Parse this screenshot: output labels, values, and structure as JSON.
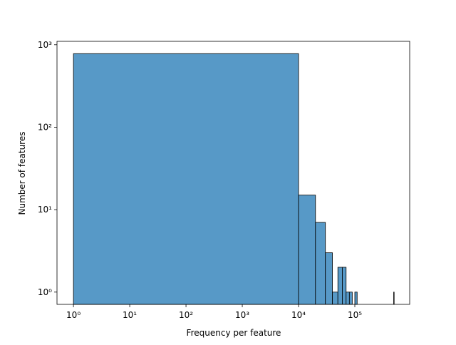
{
  "chart_data": {
    "type": "histogram",
    "log_x": true,
    "log_y": true,
    "color": "#5799c7",
    "edgecolor": "#000000",
    "x_label": "Frequency per feature",
    "y_label": "Number of features",
    "bins": [
      1,
      10000,
      20000,
      30000,
      40000,
      50000,
      60000,
      70000,
      80000,
      90000,
      100000,
      110000,
      120000,
      130000,
      140000,
      150000,
      160000,
      170000,
      180000,
      190000,
      200000,
      210000,
      220000,
      230000,
      240000,
      250000,
      260000,
      270000,
      280000,
      290000,
      300000,
      310000,
      320000,
      330000,
      340000,
      350000,
      360000,
      370000,
      380000,
      390000,
      400000,
      410000,
      420000,
      430000,
      440000,
      450000,
      460000,
      470000,
      480000,
      490000,
      500000
    ],
    "counts": [
      780,
      15,
      7,
      3,
      1,
      2,
      2,
      1,
      1,
      0,
      1,
      0,
      0,
      0,
      0,
      0,
      0,
      0,
      0,
      0,
      0,
      0,
      0,
      0,
      0,
      0,
      0,
      0,
      0,
      0,
      0,
      0,
      0,
      0,
      0,
      0,
      0,
      0,
      0,
      0,
      0,
      0,
      0,
      0,
      0,
      0,
      0,
      0,
      0,
      1
    ],
    "xlim": [
      0.51,
      944000
    ],
    "ylim": [
      0.71,
      1100
    ],
    "xticks": [
      {
        "value": 1,
        "label": "10⁰"
      },
      {
        "value": 10,
        "label": "10¹"
      },
      {
        "value": 100,
        "label": "10²"
      },
      {
        "value": 1000,
        "label": "10³"
      },
      {
        "value": 10000,
        "label": "10⁴"
      },
      {
        "value": 100000,
        "label": "10⁵"
      }
    ],
    "yticks": [
      {
        "value": 1,
        "label": "10⁰"
      },
      {
        "value": 10,
        "label": "10¹"
      },
      {
        "value": 100,
        "label": "10²"
      },
      {
        "value": 1000,
        "label": "10³"
      }
    ]
  }
}
